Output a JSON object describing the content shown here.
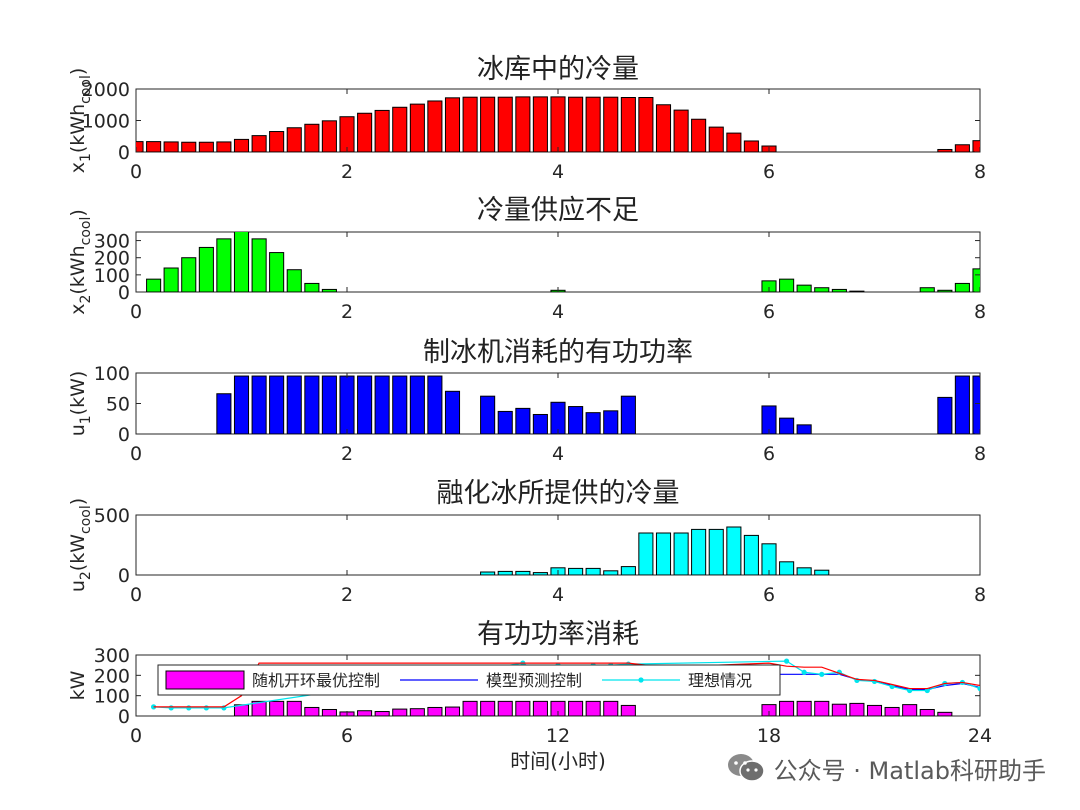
{
  "chart_data": [
    {
      "type": "bar",
      "title": "冰库中的冷量",
      "ylabel": "x₁(kWh_cool)",
      "ylabel_base": "x",
      "ylabel_sub": "1",
      "ylabel_mid": "(kWh",
      "ylabel_sub2": "cool",
      "ylabel_end": ")",
      "xlim": [
        0,
        8
      ],
      "ylim": [
        0,
        2000
      ],
      "xticks": [
        "0",
        "2",
        "4",
        "6",
        "8"
      ],
      "yticks": [
        "0",
        "1000",
        "2000"
      ],
      "bar_color": "#ff0000",
      "x": [
        0.0,
        0.167,
        0.333,
        0.5,
        0.667,
        0.833,
        1.0,
        1.167,
        1.333,
        1.5,
        1.667,
        1.833,
        2.0,
        2.167,
        2.333,
        2.5,
        2.667,
        2.833,
        3.0,
        3.167,
        3.333,
        3.5,
        3.667,
        3.833,
        4.0,
        4.167,
        4.333,
        4.5,
        4.667,
        4.833,
        5.0,
        5.167,
        5.333,
        5.5,
        5.667,
        5.833,
        6.0,
        6.167,
        6.333,
        6.5,
        6.667,
        6.833,
        7.0,
        7.167,
        7.333,
        7.5,
        7.667,
        7.833,
        8.0
      ],
      "values": [
        330,
        330,
        320,
        310,
        310,
        320,
        400,
        520,
        650,
        770,
        880,
        990,
        1120,
        1230,
        1320,
        1420,
        1520,
        1620,
        1720,
        1740,
        1740,
        1740,
        1750,
        1750,
        1750,
        1740,
        1740,
        1740,
        1730,
        1730,
        1500,
        1330,
        1040,
        790,
        600,
        350,
        190,
        0,
        0,
        0,
        0,
        0,
        0,
        0,
        0,
        0,
        80,
        230,
        360
      ]
    },
    {
      "type": "bar",
      "title": "冷量供应不足",
      "ylabel": "x₂(kWh_cool)",
      "ylabel_base": "x",
      "ylabel_sub": "2",
      "ylabel_mid": "(kWh",
      "ylabel_sub2": "cool",
      "ylabel_end": ")",
      "xlim": [
        0,
        8
      ],
      "ylim": [
        0,
        350
      ],
      "xticks": [
        "0",
        "2",
        "4",
        "6",
        "8"
      ],
      "yticks": [
        "0",
        "100",
        "200",
        "300"
      ],
      "bar_color": "#00ff00",
      "x": [
        0.0,
        0.167,
        0.333,
        0.5,
        0.667,
        0.833,
        1.0,
        1.167,
        1.333,
        1.5,
        1.667,
        1.833,
        2.0,
        2.167,
        2.333,
        2.5,
        2.667,
        2.833,
        3.0,
        3.167,
        3.333,
        3.5,
        3.667,
        3.833,
        4.0,
        4.167,
        4.333,
        4.5,
        4.667,
        4.833,
        5.0,
        5.167,
        5.333,
        5.5,
        5.667,
        5.833,
        6.0,
        6.167,
        6.333,
        6.5,
        6.667,
        6.833,
        7.0,
        7.167,
        7.333,
        7.5,
        7.667,
        7.833,
        8.0
      ],
      "values": [
        0,
        75,
        140,
        200,
        260,
        310,
        360,
        310,
        230,
        130,
        50,
        15,
        0,
        0,
        0,
        0,
        0,
        0,
        0,
        0,
        0,
        0,
        0,
        0,
        10,
        0,
        0,
        0,
        0,
        0,
        0,
        0,
        0,
        0,
        0,
        0,
        65,
        75,
        40,
        25,
        15,
        5,
        0,
        0,
        0,
        25,
        10,
        50,
        135
      ]
    },
    {
      "type": "bar",
      "title": "制冰机消耗的有功功率",
      "ylabel": "u₁(kW)",
      "ylabel_base": "u",
      "ylabel_sub": "1",
      "ylabel_mid": "(kW)",
      "ylabel_sub2": "",
      "ylabel_end": "",
      "xlim": [
        0,
        8
      ],
      "ylim": [
        0,
        100
      ],
      "xticks": [
        "0",
        "2",
        "4",
        "6",
        "8"
      ],
      "yticks": [
        "0",
        "50",
        "100"
      ],
      "bar_color": "#0000ff",
      "x": [
        0.0,
        0.167,
        0.333,
        0.5,
        0.667,
        0.833,
        1.0,
        1.167,
        1.333,
        1.5,
        1.667,
        1.833,
        2.0,
        2.167,
        2.333,
        2.5,
        2.667,
        2.833,
        3.0,
        3.167,
        3.333,
        3.5,
        3.667,
        3.833,
        4.0,
        4.167,
        4.333,
        4.5,
        4.667,
        4.833,
        5.0,
        5.167,
        5.333,
        5.5,
        5.667,
        5.833,
        6.0,
        6.167,
        6.333,
        6.5,
        6.667,
        6.833,
        7.0,
        7.167,
        7.333,
        7.5,
        7.667,
        7.833,
        8.0
      ],
      "values": [
        0,
        0,
        0,
        0,
        0,
        66,
        95,
        95,
        95,
        95,
        95,
        95,
        95,
        95,
        95,
        95,
        95,
        95,
        70,
        0,
        62,
        37,
        42,
        32,
        52,
        45,
        35,
        38,
        62,
        0,
        0,
        0,
        0,
        0,
        0,
        0,
        46,
        26,
        15,
        0,
        0,
        0,
        0,
        0,
        0,
        0,
        60,
        95,
        95
      ]
    },
    {
      "type": "bar",
      "title": "融化冰所提供的冷量",
      "ylabel": "u₂(kW_cool)",
      "ylabel_base": "u",
      "ylabel_sub": "2",
      "ylabel_mid": "(kW",
      "ylabel_sub2": "cool",
      "ylabel_end": ")",
      "xlim": [
        0,
        8
      ],
      "ylim": [
        0,
        500
      ],
      "xticks": [
        "0",
        "2",
        "4",
        "6",
        "8"
      ],
      "yticks": [
        "0",
        "500"
      ],
      "bar_color": "#00ffff",
      "x": [
        0.0,
        0.167,
        0.333,
        0.5,
        0.667,
        0.833,
        1.0,
        1.167,
        1.333,
        1.5,
        1.667,
        1.833,
        2.0,
        2.167,
        2.333,
        2.5,
        2.667,
        2.833,
        3.0,
        3.167,
        3.333,
        3.5,
        3.667,
        3.833,
        4.0,
        4.167,
        4.333,
        4.5,
        4.667,
        4.833,
        5.0,
        5.167,
        5.333,
        5.5,
        5.667,
        5.833,
        6.0,
        6.167,
        6.333,
        6.5,
        6.667,
        6.833,
        7.0,
        7.167,
        7.333,
        7.5,
        7.667,
        7.833,
        8.0
      ],
      "values": [
        0,
        0,
        0,
        0,
        0,
        0,
        0,
        0,
        0,
        0,
        0,
        0,
        0,
        0,
        0,
        0,
        0,
        0,
        0,
        0,
        25,
        30,
        30,
        20,
        60,
        55,
        55,
        35,
        70,
        350,
        350,
        350,
        380,
        380,
        400,
        330,
        260,
        110,
        60,
        40,
        0,
        0,
        0,
        0,
        0,
        0,
        0,
        0,
        0
      ]
    },
    {
      "type": "bar+line",
      "title": "有功功率消耗",
      "ylabel": "kW",
      "xlabel": "时间(小时)",
      "xlim": [
        0,
        24
      ],
      "ylim": [
        0,
        300
      ],
      "xticks": [
        "0",
        "6",
        "12",
        "18",
        "24"
      ],
      "yticks": [
        "0",
        "100",
        "200",
        "300"
      ],
      "legend_position": "upper-left",
      "series": [
        {
          "name": "随机开环最优控制",
          "style": "bar",
          "color": "#ff00ff",
          "x": [
            0,
            0.5,
            1,
            1.5,
            2,
            2.5,
            3,
            3.5,
            4,
            4.5,
            5,
            5.5,
            6,
            6.5,
            7,
            7.5,
            8,
            8.5,
            9,
            9.5,
            10,
            10.5,
            11,
            11.5,
            12,
            12.5,
            13,
            13.5,
            14,
            14.5,
            15,
            15.5,
            16,
            16.5,
            17,
            17.5,
            18,
            18.5,
            19,
            19.5,
            20,
            20.5,
            21,
            21.5,
            22,
            22.5,
            23,
            23.5,
            24
          ],
          "values": [
            0,
            0,
            0,
            0,
            0,
            0,
            55,
            72,
            72,
            72,
            42,
            32,
            20,
            26,
            22,
            34,
            36,
            42,
            44,
            72,
            72,
            72,
            72,
            72,
            72,
            72,
            72,
            72,
            52,
            0,
            0,
            0,
            0,
            0,
            0,
            0,
            56,
            72,
            72,
            72,
            58,
            62,
            52,
            42,
            56,
            32,
            18,
            0,
            0
          ]
        },
        {
          "name": "模型预测控制",
          "style": "line",
          "color": "#0000ff",
          "x": [
            18,
            18.5,
            19,
            19.5,
            20,
            20.5,
            21,
            21.5,
            22,
            22.5,
            23,
            23.5,
            24
          ],
          "values": [
            205,
            205,
            205,
            205,
            205,
            180,
            170,
            150,
            130,
            130,
            150,
            160,
            140
          ]
        },
        {
          "name": "理想情况",
          "style": "line-dots",
          "color": "#00e5ee",
          "x": [
            0.5,
            1,
            1.5,
            2,
            2.5,
            11,
            11.5,
            12,
            12.5,
            13,
            13.5,
            14,
            18.5,
            19,
            19.5,
            20,
            20.5,
            21,
            21.5,
            22,
            22.5,
            23,
            23.5,
            24
          ],
          "values": [
            45,
            40,
            40,
            40,
            40,
            260,
            210,
            250,
            240,
            250,
            250,
            255,
            270,
            215,
            205,
            215,
            175,
            170,
            145,
            125,
            125,
            160,
            165,
            135
          ]
        },
        {
          "name": "",
          "style": "line",
          "color": "#ff0000",
          "x": [
            0.5,
            1,
            1.5,
            2,
            2.5,
            3,
            3.5,
            14,
            15,
            18,
            18.5,
            19,
            19.5,
            20,
            20.5,
            21,
            21.5,
            22,
            22.5,
            23,
            23.5,
            24
          ],
          "values": [
            45,
            45,
            45,
            45,
            45,
            100,
            260,
            260,
            240,
            260,
            245,
            240,
            240,
            210,
            180,
            175,
            155,
            135,
            135,
            160,
            165,
            150
          ]
        }
      ]
    }
  ],
  "watermark": {
    "text": "公众号 · Matlab科研助手"
  }
}
